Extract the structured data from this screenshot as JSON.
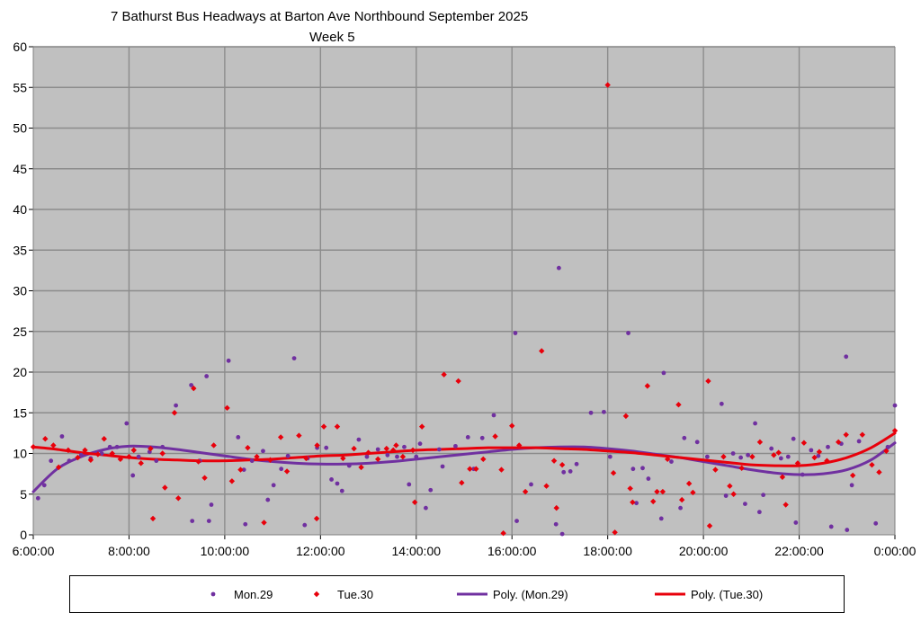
{
  "chart_data": {
    "type": "scatter",
    "title": "7 Bathurst Bus Headways at Barton Ave Northbound September 2025",
    "subtitle": "Week 5",
    "xlabel": "",
    "ylabel": "",
    "x_unit": "hours",
    "xlim": [
      6,
      24
    ],
    "ylim": [
      0,
      60
    ],
    "x_tick_labels": [
      "6:00:00",
      "8:00:00",
      "10:00:00",
      "12:00:00",
      "14:00:00",
      "16:00:00",
      "18:00:00",
      "20:00:00",
      "22:00:00",
      "0:00:00"
    ],
    "y_tick_labels": [
      "0",
      "5",
      "10",
      "15",
      "20",
      "25",
      "30",
      "35",
      "40",
      "45",
      "50",
      "55",
      "60"
    ],
    "grid": true,
    "legend_position": "bottom",
    "colors": {
      "mon": "#7030a0",
      "tue": "#e8000b",
      "plot_bg": "#c0c0c0",
      "grid": "#8c8c8c"
    },
    "series": [
      {
        "name": "Mon.29",
        "marker": "circle",
        "color": "#7030a0",
        "points": [
          [
            6.1,
            4.5
          ],
          [
            6.23,
            6.1
          ],
          [
            6.37,
            9.1
          ],
          [
            6.6,
            12.1
          ],
          [
            6.75,
            9.1
          ],
          [
            7.0,
            9.8
          ],
          [
            7.2,
            9.4
          ],
          [
            7.43,
            10.0
          ],
          [
            7.6,
            10.8
          ],
          [
            7.75,
            10.8
          ],
          [
            7.95,
            13.7
          ],
          [
            8.08,
            7.3
          ],
          [
            8.2,
            9.6
          ],
          [
            8.43,
            10.2
          ],
          [
            8.57,
            9.1
          ],
          [
            8.7,
            10.8
          ],
          [
            8.98,
            15.9
          ],
          [
            9.3,
            18.4
          ],
          [
            9.32,
            1.7
          ],
          [
            9.48,
            9.1
          ],
          [
            9.62,
            19.5
          ],
          [
            9.67,
            1.7
          ],
          [
            9.72,
            3.7
          ],
          [
            10.08,
            21.4
          ],
          [
            10.28,
            12.0
          ],
          [
            10.4,
            8.0
          ],
          [
            10.43,
            1.3
          ],
          [
            10.57,
            9.1
          ],
          [
            10.8,
            10.3
          ],
          [
            10.9,
            4.3
          ],
          [
            11.02,
            6.1
          ],
          [
            11.18,
            8.1
          ],
          [
            11.32,
            9.7
          ],
          [
            11.45,
            21.7
          ],
          [
            11.67,
            1.2
          ],
          [
            11.73,
            9.4
          ],
          [
            11.93,
            10.7
          ],
          [
            12.12,
            10.7
          ],
          [
            12.23,
            6.8
          ],
          [
            12.35,
            6.3
          ],
          [
            12.45,
            5.4
          ],
          [
            12.6,
            8.5
          ],
          [
            12.8,
            11.7
          ],
          [
            12.97,
            9.6
          ],
          [
            13.2,
            10.5
          ],
          [
            13.4,
            9.8
          ],
          [
            13.6,
            9.6
          ],
          [
            13.75,
            10.8
          ],
          [
            13.85,
            6.2
          ],
          [
            14.0,
            9.6
          ],
          [
            14.08,
            11.2
          ],
          [
            14.2,
            3.3
          ],
          [
            14.3,
            5.5
          ],
          [
            14.48,
            10.5
          ],
          [
            14.55,
            8.4
          ],
          [
            14.82,
            10.9
          ],
          [
            15.08,
            12.0
          ],
          [
            15.2,
            8.1
          ],
          [
            15.38,
            11.9
          ],
          [
            15.62,
            14.7
          ],
          [
            16.07,
            24.8
          ],
          [
            16.1,
            1.7
          ],
          [
            16.4,
            6.2
          ],
          [
            16.92,
            1.3
          ],
          [
            16.98,
            32.8
          ],
          [
            17.05,
            0.1
          ],
          [
            17.08,
            7.7
          ],
          [
            17.22,
            7.8
          ],
          [
            17.35,
            8.7
          ],
          [
            17.65,
            15.0
          ],
          [
            17.92,
            15.1
          ],
          [
            18.05,
            9.6
          ],
          [
            18.43,
            24.8
          ],
          [
            18.53,
            8.1
          ],
          [
            18.6,
            3.9
          ],
          [
            18.73,
            8.2
          ],
          [
            18.85,
            6.9
          ],
          [
            19.12,
            2.0
          ],
          [
            19.17,
            19.9
          ],
          [
            19.33,
            9.0
          ],
          [
            19.52,
            3.3
          ],
          [
            19.6,
            11.9
          ],
          [
            19.87,
            11.4
          ],
          [
            20.08,
            9.6
          ],
          [
            20.38,
            16.1
          ],
          [
            20.47,
            4.8
          ],
          [
            20.62,
            10.0
          ],
          [
            20.78,
            9.5
          ],
          [
            20.87,
            3.8
          ],
          [
            20.93,
            9.8
          ],
          [
            21.08,
            13.7
          ],
          [
            21.17,
            2.8
          ],
          [
            21.25,
            4.9
          ],
          [
            21.42,
            10.6
          ],
          [
            21.62,
            9.4
          ],
          [
            21.77,
            9.6
          ],
          [
            21.88,
            11.8
          ],
          [
            21.93,
            1.5
          ],
          [
            22.07,
            7.4
          ],
          [
            22.25,
            10.4
          ],
          [
            22.4,
            9.7
          ],
          [
            22.6,
            10.8
          ],
          [
            22.67,
            1.0
          ],
          [
            22.88,
            11.2
          ],
          [
            22.98,
            21.9
          ],
          [
            23.0,
            0.6
          ],
          [
            23.1,
            6.1
          ],
          [
            23.25,
            11.5
          ],
          [
            23.6,
            1.4
          ],
          [
            23.85,
            10.8
          ],
          [
            24.0,
            15.9
          ]
        ]
      },
      {
        "name": "Tue.30",
        "marker": "diamond",
        "color": "#e8000b",
        "points": [
          [
            6.0,
            10.8
          ],
          [
            6.25,
            11.8
          ],
          [
            6.42,
            11.0
          ],
          [
            6.53,
            8.3
          ],
          [
            6.73,
            10.4
          ],
          [
            6.93,
            9.5
          ],
          [
            7.08,
            10.4
          ],
          [
            7.2,
            9.2
          ],
          [
            7.35,
            9.9
          ],
          [
            7.48,
            11.8
          ],
          [
            7.65,
            10.0
          ],
          [
            7.82,
            9.3
          ],
          [
            8.0,
            9.6
          ],
          [
            8.1,
            10.4
          ],
          [
            8.25,
            8.8
          ],
          [
            8.45,
            10.6
          ],
          [
            8.5,
            2.0
          ],
          [
            8.7,
            10.0
          ],
          [
            8.75,
            5.8
          ],
          [
            8.95,
            15.0
          ],
          [
            9.03,
            4.5
          ],
          [
            9.35,
            18.0
          ],
          [
            9.45,
            9.0
          ],
          [
            9.58,
            7.0
          ],
          [
            9.77,
            11.0
          ],
          [
            10.05,
            15.6
          ],
          [
            10.15,
            6.6
          ],
          [
            10.33,
            8.0
          ],
          [
            10.48,
            10.7
          ],
          [
            10.67,
            9.6
          ],
          [
            10.82,
            1.5
          ],
          [
            10.95,
            9.2
          ],
          [
            11.17,
            12.0
          ],
          [
            11.3,
            7.8
          ],
          [
            11.55,
            12.2
          ],
          [
            11.7,
            9.4
          ],
          [
            11.92,
            2.0
          ],
          [
            11.93,
            11.0
          ],
          [
            12.07,
            13.3
          ],
          [
            12.35,
            13.3
          ],
          [
            12.47,
            9.4
          ],
          [
            12.7,
            10.6
          ],
          [
            12.85,
            8.3
          ],
          [
            13.0,
            10.1
          ],
          [
            13.2,
            9.3
          ],
          [
            13.38,
            10.6
          ],
          [
            13.52,
            10.4
          ],
          [
            13.58,
            11.0
          ],
          [
            13.72,
            9.6
          ],
          [
            13.93,
            10.4
          ],
          [
            13.97,
            4.0
          ],
          [
            14.12,
            13.3
          ],
          [
            14.58,
            19.7
          ],
          [
            14.88,
            18.9
          ],
          [
            14.95,
            6.4
          ],
          [
            15.12,
            8.1
          ],
          [
            15.25,
            8.1
          ],
          [
            15.4,
            9.3
          ],
          [
            15.65,
            12.1
          ],
          [
            15.78,
            8.0
          ],
          [
            15.82,
            0.2
          ],
          [
            16.0,
            13.4
          ],
          [
            16.15,
            11.0
          ],
          [
            16.28,
            5.3
          ],
          [
            16.62,
            22.6
          ],
          [
            16.72,
            6.0
          ],
          [
            16.88,
            9.1
          ],
          [
            16.93,
            3.3
          ],
          [
            17.05,
            8.6
          ],
          [
            18.0,
            55.3
          ],
          [
            18.12,
            7.6
          ],
          [
            18.15,
            0.3
          ],
          [
            18.38,
            14.6
          ],
          [
            18.47,
            5.7
          ],
          [
            18.52,
            4.0
          ],
          [
            18.83,
            18.3
          ],
          [
            18.95,
            4.1
          ],
          [
            19.03,
            5.3
          ],
          [
            19.15,
            5.3
          ],
          [
            19.25,
            9.3
          ],
          [
            19.48,
            16.0
          ],
          [
            19.55,
            4.3
          ],
          [
            19.7,
            6.3
          ],
          [
            19.78,
            5.2
          ],
          [
            20.1,
            18.9
          ],
          [
            20.13,
            1.1
          ],
          [
            20.25,
            8.0
          ],
          [
            20.42,
            9.6
          ],
          [
            20.55,
            6.0
          ],
          [
            20.63,
            5.0
          ],
          [
            20.8,
            8.2
          ],
          [
            21.02,
            9.6
          ],
          [
            21.18,
            11.4
          ],
          [
            21.47,
            9.8
          ],
          [
            21.57,
            10.1
          ],
          [
            21.65,
            7.1
          ],
          [
            21.72,
            3.7
          ],
          [
            21.97,
            8.8
          ],
          [
            22.1,
            11.3
          ],
          [
            22.32,
            9.5
          ],
          [
            22.42,
            10.2
          ],
          [
            22.58,
            9.1
          ],
          [
            22.82,
            11.4
          ],
          [
            22.98,
            12.3
          ],
          [
            23.12,
            7.3
          ],
          [
            23.32,
            12.3
          ],
          [
            23.52,
            8.6
          ],
          [
            23.67,
            7.7
          ],
          [
            23.82,
            10.3
          ],
          [
            24.0,
            12.8
          ]
        ]
      },
      {
        "name": "Poly. (Mon.29)",
        "type": "trendline",
        "color": "#7030a0",
        "points": [
          [
            6.0,
            5.3
          ],
          [
            6.5,
            8.1
          ],
          [
            7.0,
            9.6
          ],
          [
            7.5,
            10.5
          ],
          [
            8.0,
            10.9
          ],
          [
            8.5,
            10.8
          ],
          [
            9.0,
            10.5
          ],
          [
            9.5,
            10.1
          ],
          [
            10.0,
            9.7
          ],
          [
            10.5,
            9.3
          ],
          [
            11.0,
            9.0
          ],
          [
            11.5,
            8.8
          ],
          [
            12.0,
            8.7
          ],
          [
            12.5,
            8.7
          ],
          [
            13.0,
            8.8
          ],
          [
            13.5,
            9.0
          ],
          [
            14.0,
            9.3
          ],
          [
            14.5,
            9.6
          ],
          [
            15.0,
            9.9
          ],
          [
            15.5,
            10.2
          ],
          [
            16.0,
            10.5
          ],
          [
            16.5,
            10.7
          ],
          [
            17.0,
            10.8
          ],
          [
            17.5,
            10.8
          ],
          [
            18.0,
            10.6
          ],
          [
            18.5,
            10.3
          ],
          [
            19.0,
            9.9
          ],
          [
            19.5,
            9.5
          ],
          [
            20.0,
            9.0
          ],
          [
            20.5,
            8.5
          ],
          [
            21.0,
            8.0
          ],
          [
            21.5,
            7.6
          ],
          [
            22.0,
            7.4
          ],
          [
            22.5,
            7.5
          ],
          [
            23.0,
            8.0
          ],
          [
            23.5,
            9.2
          ],
          [
            24.0,
            11.3
          ]
        ]
      },
      {
        "name": "Poly. (Tue.30)",
        "type": "trendline",
        "color": "#e8000b",
        "points": [
          [
            6.0,
            10.8
          ],
          [
            6.5,
            10.5
          ],
          [
            7.0,
            10.1
          ],
          [
            7.5,
            9.8
          ],
          [
            8.0,
            9.5
          ],
          [
            8.5,
            9.3
          ],
          [
            9.0,
            9.2
          ],
          [
            9.5,
            9.1
          ],
          [
            10.0,
            9.1
          ],
          [
            10.5,
            9.2
          ],
          [
            11.0,
            9.3
          ],
          [
            11.5,
            9.5
          ],
          [
            12.0,
            9.7
          ],
          [
            12.5,
            9.8
          ],
          [
            13.0,
            10.0
          ],
          [
            13.5,
            10.2
          ],
          [
            14.0,
            10.4
          ],
          [
            14.5,
            10.5
          ],
          [
            15.0,
            10.6
          ],
          [
            15.5,
            10.7
          ],
          [
            16.0,
            10.7
          ],
          [
            16.5,
            10.7
          ],
          [
            17.0,
            10.6
          ],
          [
            17.5,
            10.5
          ],
          [
            18.0,
            10.3
          ],
          [
            18.5,
            10.1
          ],
          [
            19.0,
            9.8
          ],
          [
            19.5,
            9.5
          ],
          [
            20.0,
            9.2
          ],
          [
            20.5,
            8.9
          ],
          [
            21.0,
            8.6
          ],
          [
            21.5,
            8.5
          ],
          [
            22.0,
            8.5
          ],
          [
            22.5,
            8.8
          ],
          [
            23.0,
            9.5
          ],
          [
            23.5,
            10.7
          ],
          [
            24.0,
            12.5
          ]
        ]
      }
    ]
  }
}
